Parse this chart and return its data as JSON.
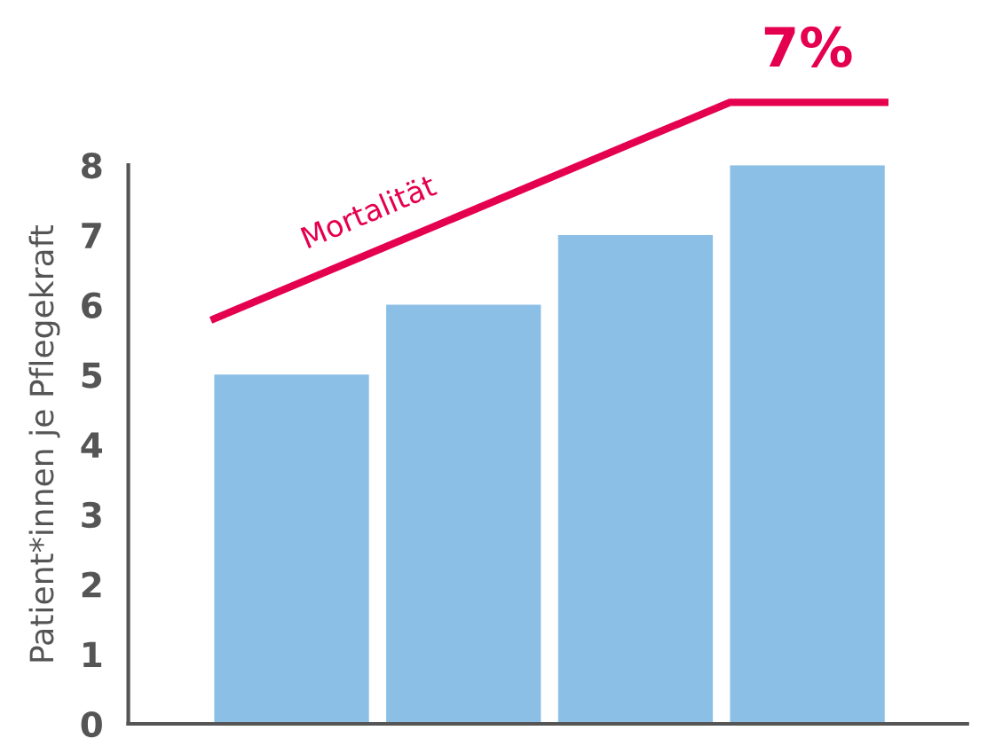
{
  "chart_data": {
    "type": "bar",
    "ylabel": "Patient*innen je Pflegekraft",
    "categories": [
      null,
      null,
      null,
      null
    ],
    "values": [
      5,
      6,
      7,
      8
    ],
    "color": "#8cbfe6",
    "ylim": [
      0,
      8
    ],
    "yticks": [
      0,
      1,
      2,
      3,
      4,
      5,
      6,
      7,
      8
    ],
    "grid": false,
    "tick_labels": "y",
    "annotations": [
      "Mortalität",
      "7%"
    ]
  }
}
